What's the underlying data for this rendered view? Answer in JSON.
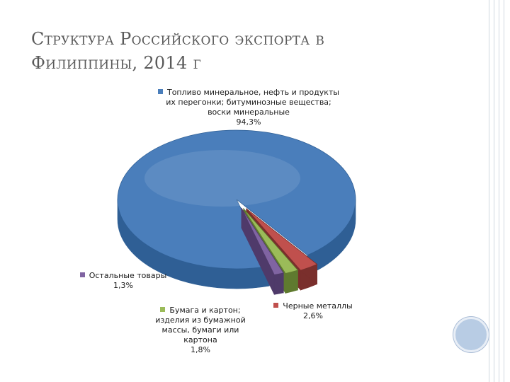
{
  "slide": {
    "title_line1": "Структура Российского экспорта в",
    "title_line2": "Филиппины, 2014 г"
  },
  "chart_data": {
    "type": "pie",
    "title": "",
    "slices": [
      {
        "name": "Топливо минеральное, нефть и продукты\nих перегонки; битуминозные вещества;\nвоски минеральные",
        "value": 94.3,
        "label": "94,3%",
        "color": "#4a7ebb",
        "dark": "#2f5f95"
      },
      {
        "name": "Черные металлы",
        "value": 2.6,
        "label": "2,6%",
        "color": "#c0504d",
        "dark": "#7a2f2c"
      },
      {
        "name": "Бумага и картон;\nизделия из бумажной\nмассы, бумаги или\nкартона",
        "value": 1.8,
        "label": "1,8%",
        "color": "#9bbb59",
        "dark": "#5f7a2f"
      },
      {
        "name": "Остальные товары",
        "value": 1.3,
        "label": "1,3%",
        "color": "#8064a2",
        "dark": "#4f3a6a"
      }
    ],
    "style": "3d-exploded"
  }
}
